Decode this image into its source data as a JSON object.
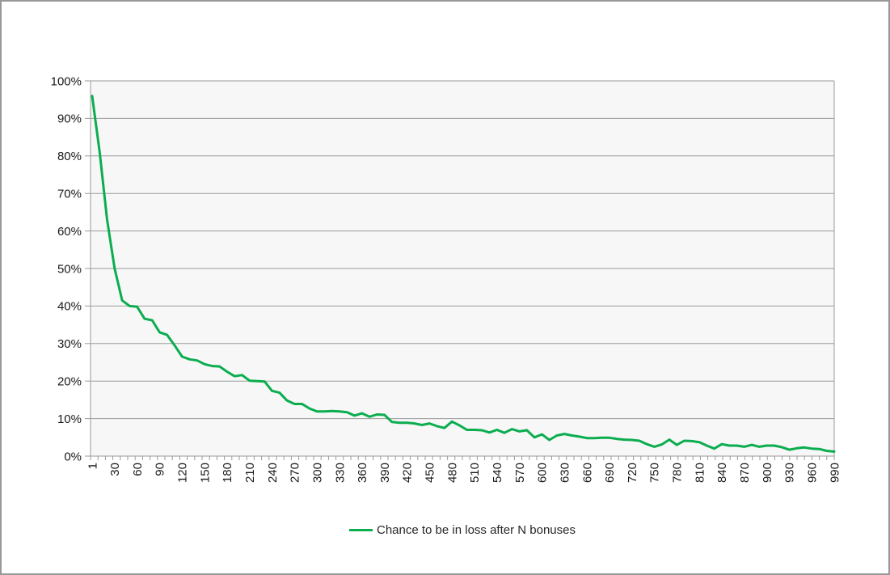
{
  "window": {
    "background": "#ffffff",
    "border_color": "#989898"
  },
  "chart_data": {
    "type": "line",
    "title": "",
    "xlabel": "",
    "ylabel": "",
    "legend_label": "Chance to be in loss after N bonuses",
    "legend_position": "bottom",
    "series_color": "#0bad4f",
    "gridline_color": "#9a9a9a",
    "plot_background": "#f7f7f7",
    "axis_text_color": "#1a1a1a",
    "grid": true,
    "ylim": [
      0,
      100
    ],
    "y_tick_labels": [
      "0%",
      "10%",
      "20%",
      "30%",
      "40%",
      "50%",
      "60%",
      "70%",
      "80%",
      "90%",
      "100%"
    ],
    "x_tick_labels": [
      "1",
      "30",
      "60",
      "90",
      "120",
      "150",
      "180",
      "210",
      "240",
      "270",
      "300",
      "330",
      "360",
      "390",
      "420",
      "450",
      "480",
      "510",
      "540",
      "570",
      "600",
      "630",
      "660",
      "690",
      "720",
      "750",
      "780",
      "810",
      "840",
      "870",
      "900",
      "930",
      "960",
      "990"
    ],
    "x": [
      1,
      10,
      20,
      30,
      40,
      50,
      60,
      70,
      80,
      90,
      100,
      110,
      120,
      130,
      140,
      150,
      160,
      170,
      180,
      190,
      200,
      210,
      220,
      230,
      240,
      250,
      260,
      270,
      280,
      290,
      300,
      310,
      320,
      330,
      340,
      350,
      360,
      370,
      380,
      390,
      400,
      410,
      420,
      430,
      440,
      450,
      460,
      470,
      480,
      490,
      500,
      510,
      520,
      530,
      540,
      550,
      560,
      570,
      580,
      590,
      600,
      610,
      620,
      630,
      640,
      650,
      660,
      670,
      680,
      690,
      700,
      710,
      720,
      730,
      740,
      750,
      760,
      770,
      780,
      790,
      800,
      810,
      820,
      830,
      840,
      850,
      860,
      870,
      880,
      890,
      900,
      910,
      920,
      930,
      940,
      950,
      960,
      970,
      980,
      990
    ],
    "values": [
      96,
      81,
      63,
      50,
      41.5,
      40,
      39.8,
      36.6,
      36.2,
      33,
      32.3,
      29.5,
      26.5,
      25.8,
      25.5,
      24.5,
      24,
      23.9,
      22.5,
      21.3,
      21.6,
      20.1,
      20,
      19.9,
      17.4,
      16.9,
      14.8,
      13.9,
      13.9,
      12.7,
      11.9,
      11.9,
      12,
      11.9,
      11.7,
      10.8,
      11.4,
      10.5,
      11.1,
      11,
      9.1,
      8.9,
      8.9,
      8.7,
      8.3,
      8.7,
      8,
      7.5,
      9.2,
      8.2,
      7,
      7,
      6.9,
      6.3,
      7,
      6.2,
      7.2,
      6.6,
      6.9,
      5,
      5.8,
      4.3,
      5.5,
      5.9,
      5.5,
      5.2,
      4.8,
      4.8,
      4.9,
      4.9,
      4.6,
      4.4,
      4.3,
      4.1,
      3.2,
      2.5,
      3.1,
      4.4,
      3,
      4.1,
      4,
      3.7,
      2.8,
      2,
      3.2,
      2.8,
      2.8,
      2.5,
      3,
      2.5,
      2.8,
      2.8,
      2.4,
      1.7,
      2.1,
      2.3,
      2,
      1.9,
      1.4,
      1.2
    ]
  }
}
